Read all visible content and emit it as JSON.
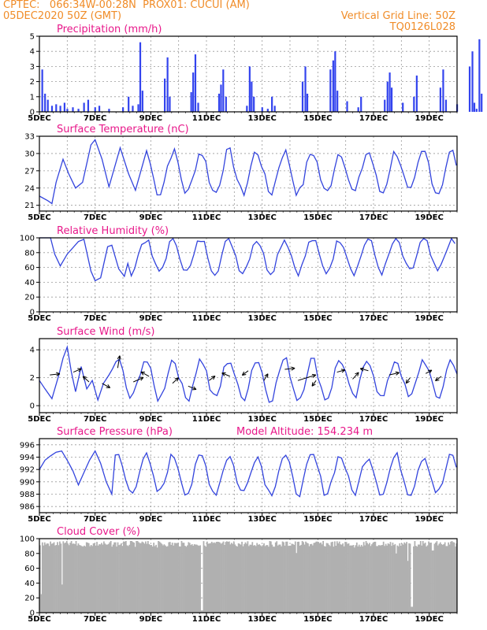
{
  "header": {
    "line1": "CPTEC:   066:34W-00:28N  PROX01: CUCUI (AM)",
    "line2": "05DEC2020 50Z (GMT)",
    "right1": "Vertical Grid Line: 50Z",
    "right2": "TQ0126L028"
  },
  "colors": {
    "series": "#3344dd",
    "bars": "#3344ee",
    "cloud": "#b0b0b0",
    "title": "#e8188a",
    "header": "#f08c28"
  },
  "chart_data": [
    {
      "type": "bar",
      "title": "Precipitation (mm/h)",
      "ylim": [
        0,
        5
      ],
      "yticks": [
        "0",
        "1",
        "2",
        "3",
        "4",
        "5"
      ],
      "xticks": [
        "5DEC",
        "7DEC",
        "9DEC",
        "11DEC",
        "13DEC",
        "15DEC",
        "17DEC",
        "19DEC"
      ],
      "bars": [
        {
          "x": 0.1,
          "y": 2.8
        },
        {
          "x": 0.2,
          "y": 1.2
        },
        {
          "x": 0.3,
          "y": 0.8
        },
        {
          "x": 0.45,
          "y": 0.4
        },
        {
          "x": 0.6,
          "y": 0.5
        },
        {
          "x": 0.75,
          "y": 0.4
        },
        {
          "x": 0.9,
          "y": 0.6
        },
        {
          "x": 1.0,
          "y": 0.2
        },
        {
          "x": 1.2,
          "y": 0.3
        },
        {
          "x": 1.4,
          "y": 0.2
        },
        {
          "x": 1.6,
          "y": 0.6
        },
        {
          "x": 1.75,
          "y": 0.8
        },
        {
          "x": 2.0,
          "y": 0.3
        },
        {
          "x": 2.15,
          "y": 0.4
        },
        {
          "x": 2.5,
          "y": 0.2
        },
        {
          "x": 3.0,
          "y": 0.3
        },
        {
          "x": 3.2,
          "y": 1.0
        },
        {
          "x": 3.35,
          "y": 0.4
        },
        {
          "x": 3.55,
          "y": 0.5
        },
        {
          "x": 3.62,
          "y": 4.6
        },
        {
          "x": 3.7,
          "y": 1.4
        },
        {
          "x": 4.5,
          "y": 2.2
        },
        {
          "x": 4.6,
          "y": 3.6
        },
        {
          "x": 4.68,
          "y": 1.0
        },
        {
          "x": 5.45,
          "y": 1.3
        },
        {
          "x": 5.52,
          "y": 2.6
        },
        {
          "x": 5.6,
          "y": 3.8
        },
        {
          "x": 5.7,
          "y": 0.6
        },
        {
          "x": 6.45,
          "y": 1.2
        },
        {
          "x": 6.52,
          "y": 1.8
        },
        {
          "x": 6.6,
          "y": 2.8
        },
        {
          "x": 6.7,
          "y": 1.0
        },
        {
          "x": 7.45,
          "y": 0.4
        },
        {
          "x": 7.55,
          "y": 3.0
        },
        {
          "x": 7.62,
          "y": 2.0
        },
        {
          "x": 7.7,
          "y": 1.0
        },
        {
          "x": 8.0,
          "y": 0.3
        },
        {
          "x": 8.2,
          "y": 0.2
        },
        {
          "x": 8.35,
          "y": 1.0
        },
        {
          "x": 8.45,
          "y": 0.4
        },
        {
          "x": 9.45,
          "y": 2.0
        },
        {
          "x": 9.55,
          "y": 3.0
        },
        {
          "x": 9.62,
          "y": 1.2
        },
        {
          "x": 10.45,
          "y": 2.8
        },
        {
          "x": 10.55,
          "y": 3.4
        },
        {
          "x": 10.62,
          "y": 4.0
        },
        {
          "x": 10.7,
          "y": 1.4
        },
        {
          "x": 11.05,
          "y": 0.7
        },
        {
          "x": 11.45,
          "y": 0.3
        },
        {
          "x": 11.55,
          "y": 1.0
        },
        {
          "x": 12.4,
          "y": 0.8
        },
        {
          "x": 12.5,
          "y": 2.0
        },
        {
          "x": 12.58,
          "y": 2.6
        },
        {
          "x": 12.65,
          "y": 1.6
        },
        {
          "x": 13.05,
          "y": 0.6
        },
        {
          "x": 13.45,
          "y": 1.0
        },
        {
          "x": 13.55,
          "y": 2.4
        },
        {
          "x": 14.4,
          "y": 1.6
        },
        {
          "x": 14.5,
          "y": 2.8
        },
        {
          "x": 14.6,
          "y": 0.8
        },
        {
          "x": 15.0,
          "y": 0.5
        },
        {
          "x": 15.45,
          "y": 3.0
        },
        {
          "x": 15.55,
          "y": 4.0
        },
        {
          "x": 15.62,
          "y": 0.6
        },
        {
          "x": 15.7,
          "y": 0.2
        },
        {
          "x": 15.8,
          "y": 4.8
        },
        {
          "x": 15.88,
          "y": 1.2
        }
      ]
    },
    {
      "type": "line",
      "title": "Surface Temperature (nC)",
      "ylim": [
        20,
        33
      ],
      "yticks": [
        "21",
        "24",
        "27",
        "30",
        "33"
      ],
      "xticks": [
        "5DEC",
        "7DEC",
        "9DEC",
        "11DEC",
        "13DEC",
        "15DEC",
        "17DEC",
        "19DEC"
      ],
      "mean": 26.7,
      "amplitude": 3.6,
      "points": [
        [
          0,
          22.6
        ],
        [
          0.3,
          21.8
        ],
        [
          0.45,
          21.3
        ],
        [
          0.6,
          25.0
        ],
        [
          0.85,
          29.0
        ],
        [
          1.05,
          26.5
        ],
        [
          1.3,
          24.0
        ],
        [
          1.55,
          25.0
        ],
        [
          1.85,
          31.5
        ],
        [
          2.0,
          32.4
        ],
        [
          2.25,
          29.0
        ],
        [
          2.5,
          24.2
        ],
        [
          2.9,
          31.0
        ],
        [
          3.2,
          26.5
        ],
        [
          3.45,
          23.6
        ],
        [
          3.85,
          30.5
        ]
      ]
    },
    {
      "type": "line",
      "title": "Relative Humidity (%)",
      "ylim": [
        0,
        100
      ],
      "yticks": [
        "0",
        "20",
        "40",
        "60",
        "80",
        "100"
      ],
      "xticks": [
        "5DEC",
        "7DEC",
        "9DEC",
        "11DEC",
        "13DEC",
        "15DEC",
        "17DEC",
        "19DEC"
      ],
      "mean": 76,
      "amplitude": 22,
      "points": [
        [
          0,
          100
        ],
        [
          0.4,
          100
        ],
        [
          0.55,
          78
        ],
        [
          0.75,
          62
        ],
        [
          1.0,
          78
        ],
        [
          1.4,
          95
        ],
        [
          1.6,
          98
        ],
        [
          1.85,
          55
        ],
        [
          2.0,
          42
        ],
        [
          2.2,
          46
        ],
        [
          2.45,
          88
        ],
        [
          2.6,
          90
        ],
        [
          2.85,
          58
        ],
        [
          3.05,
          48
        ]
      ]
    },
    {
      "type": "line",
      "title": "Surface Wind (m/s)",
      "ylim": [
        -0.5,
        4.8
      ],
      "yticks": [
        "0",
        "2",
        "4"
      ],
      "xticks": [
        "5DEC",
        "7DEC",
        "9DEC",
        "11DEC",
        "13DEC",
        "15DEC",
        "17DEC",
        "19DEC"
      ],
      "mean": 1.9,
      "amplitude": 1.4,
      "points": [
        [
          0,
          1.8
        ],
        [
          0.2,
          1.2
        ],
        [
          0.45,
          0.5
        ],
        [
          0.7,
          2.2
        ],
        [
          0.85,
          3.4
        ],
        [
          1.0,
          4.2
        ],
        [
          1.15,
          2.4
        ],
        [
          1.3,
          1.0
        ],
        [
          1.5,
          2.8
        ],
        [
          1.7,
          1.2
        ],
        [
          1.9,
          1.8
        ],
        [
          2.1,
          0.4
        ],
        [
          2.3,
          1.6
        ],
        [
          2.5,
          2.2
        ]
      ],
      "arrows": [
        [
          0.4,
          2.2,
          0.5,
          0.1
        ],
        [
          1.3,
          2.4,
          0.4,
          0.3
        ],
        [
          1.9,
          1.7,
          -0.3,
          0.5
        ],
        [
          2.4,
          1.6,
          0.4,
          -0.4
        ],
        [
          3.0,
          2.7,
          0.1,
          1.1
        ],
        [
          3.6,
          1.7,
          0.5,
          0.4
        ],
        [
          4.2,
          2.1,
          -0.4,
          0.4
        ],
        [
          5.1,
          1.6,
          0.3,
          0.5
        ],
        [
          5.7,
          1.4,
          0.4,
          -0.3
        ],
        [
          6.5,
          1.8,
          0.3,
          0.4
        ],
        [
          7.3,
          2.1,
          -0.4,
          0.3
        ],
        [
          8.0,
          2.5,
          -0.3,
          -0.4
        ],
        [
          8.6,
          1.8,
          0.2,
          0.6
        ],
        [
          9.4,
          2.6,
          0.5,
          0.1
        ],
        [
          9.9,
          1.8,
          0.9,
          0.5
        ],
        [
          10.6,
          1.8,
          -0.2,
          -0.5
        ],
        [
          11.4,
          2.4,
          0.4,
          0.2
        ],
        [
          12.0,
          1.9,
          0.3,
          0.6
        ],
        [
          12.6,
          2.5,
          -0.4,
          0.2
        ],
        [
          13.4,
          2.2,
          0.5,
          0.2
        ],
        [
          14.2,
          2.0,
          -0.2,
          -0.5
        ],
        [
          14.8,
          2.3,
          0.3,
          0.3
        ],
        [
          15.4,
          2.1,
          -0.3,
          -0.4
        ]
      ]
    },
    {
      "type": "line",
      "title": "Surface Pressure (hPa)",
      "subtitle": "Model Altitude: 154.234 m",
      "ylim": [
        985,
        997
      ],
      "yticks": [
        "986",
        "988",
        "990",
        "992",
        "994",
        "996"
      ],
      "xticks": [
        "5DEC",
        "7DEC",
        "9DEC",
        "11DEC",
        "13DEC",
        "15DEC",
        "17DEC",
        "19DEC"
      ],
      "mean": 991.2,
      "amplitude": 3.0,
      "points": [
        [
          0,
          992.0
        ],
        [
          0.2,
          993.5
        ],
        [
          0.4,
          994.2
        ],
        [
          0.6,
          994.8
        ],
        [
          0.8,
          995.0
        ],
        [
          1.0,
          993.5
        ],
        [
          1.2,
          991.8
        ],
        [
          1.4,
          989.5
        ],
        [
          1.6,
          991.5
        ],
        [
          1.8,
          993.5
        ],
        [
          2.0,
          995.0
        ],
        [
          2.2,
          993.0
        ],
        [
          2.4,
          990.0
        ],
        [
          2.6,
          988.0
        ]
      ]
    },
    {
      "type": "bar",
      "title": "Cloud Cover (%)",
      "ylim": [
        0,
        100
      ],
      "yticks": [
        "0",
        "20",
        "40",
        "60",
        "80",
        "100"
      ],
      "xticks": [
        "5DEC",
        "7DEC",
        "9DEC",
        "11DEC",
        "13DEC",
        "15DEC",
        "17DEC",
        "19DEC"
      ],
      "base": 97,
      "dips": [
        [
          0.05,
          25
        ],
        [
          0.8,
          38
        ],
        [
          1.5,
          90
        ],
        [
          2.4,
          92
        ],
        [
          3.6,
          94
        ],
        [
          4.2,
          88
        ],
        [
          4.9,
          94
        ],
        [
          5.6,
          92
        ],
        [
          5.82,
          3
        ],
        [
          6.3,
          94
        ],
        [
          7.5,
          90
        ],
        [
          8.6,
          92
        ],
        [
          9.2,
          80
        ],
        [
          10.2,
          90
        ],
        [
          11.3,
          88
        ],
        [
          12.1,
          90
        ],
        [
          12.8,
          80
        ],
        [
          13.2,
          70
        ],
        [
          13.35,
          8
        ],
        [
          13.6,
          92
        ],
        [
          14.1,
          84
        ],
        [
          14.6,
          90
        ],
        [
          15.2,
          86
        ],
        [
          15.5,
          62
        ],
        [
          15.8,
          94
        ]
      ]
    }
  ]
}
